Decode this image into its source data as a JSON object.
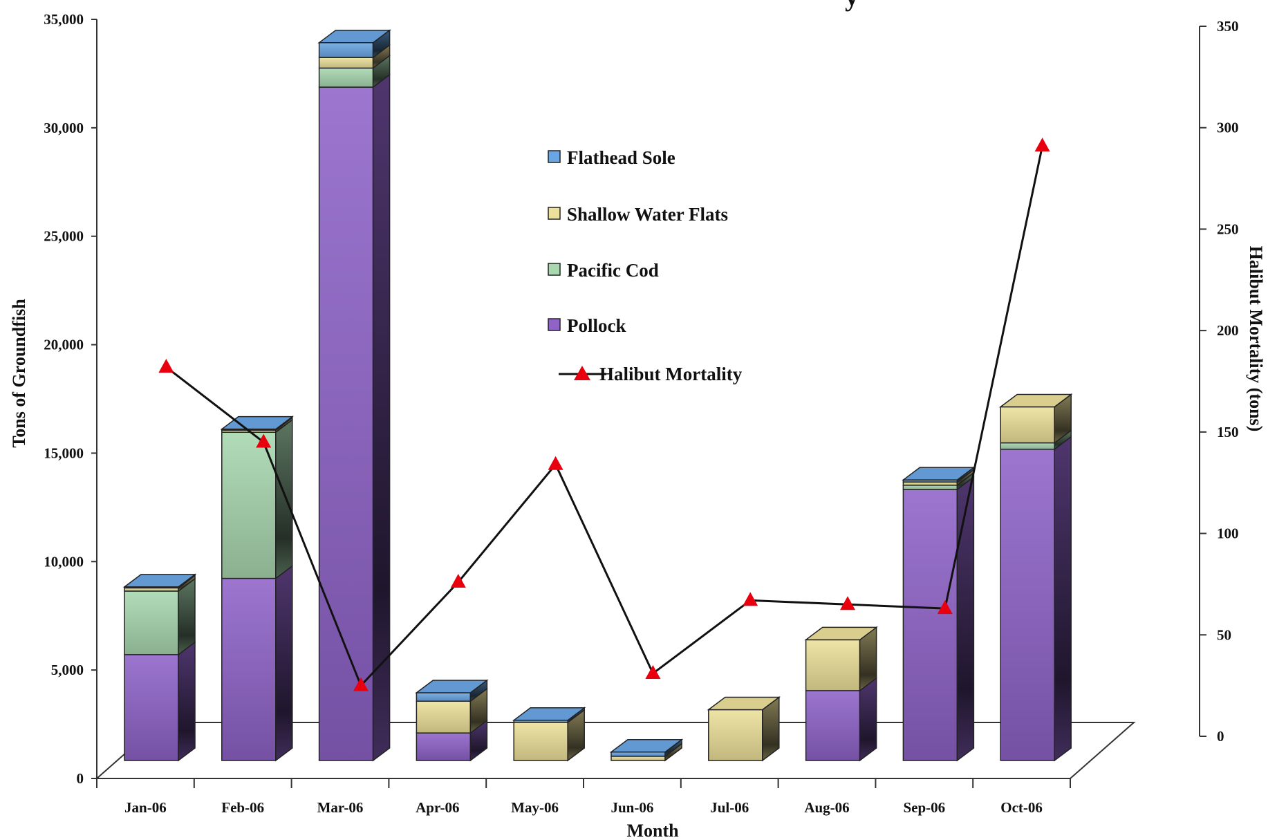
{
  "chart_data": {
    "type": "bar",
    "subtype": "stacked-3d-with-line",
    "title_fragment": "y",
    "categories": [
      "Jan-06",
      "Feb-06",
      "Mar-06",
      "Apr-06",
      "May-06",
      "Jun-06",
      "Jul-06",
      "Aug-06",
      "Sep-06",
      "Oct-06"
    ],
    "series": [
      {
        "name": "Pollock",
        "color": "#8f63c8",
        "values": [
          5000,
          8600,
          31800,
          1300,
          0,
          0,
          0,
          3300,
          12800,
          14700
        ]
      },
      {
        "name": "Pacific Cod",
        "color": "#a8d7b0",
        "values": [
          3000,
          6900,
          900,
          0,
          0,
          0,
          0,
          0,
          200,
          300
        ]
      },
      {
        "name": "Shallow Water Flats",
        "color": "#ece09a",
        "values": [
          150,
          100,
          500,
          1500,
          1800,
          200,
          2400,
          2400,
          150,
          1700
        ]
      },
      {
        "name": "Flathead Sole",
        "color": "#6aa6e4",
        "values": [
          50,
          50,
          700,
          400,
          100,
          200,
          0,
          0,
          100,
          0
        ]
      }
    ],
    "line_series": {
      "name": "Halibut Mortality",
      "color": "#e8000f",
      "axis": "right",
      "values": [
        182,
        145,
        25,
        76,
        134,
        31,
        67,
        65,
        63,
        291
      ]
    },
    "xlabel": "Month",
    "ylabel": "Tons of Groundfish",
    "ylabel_right": "Halibut Mortality (tons)",
    "ylim": [
      0,
      35000
    ],
    "ylim_right": [
      0,
      350
    ],
    "yticks": [
      "0",
      "5,000",
      "10,000",
      "15,000",
      "20,000",
      "25,000",
      "30,000",
      "35,000"
    ],
    "yticks_right": [
      "0",
      "50",
      "100",
      "150",
      "200",
      "250",
      "300",
      "350"
    ],
    "legend": {
      "placement": "center-top",
      "items": [
        "Flathead Sole",
        "Shallow Water Flats",
        "Pacific Cod",
        "Pollock",
        "Halibut Mortality"
      ]
    }
  }
}
